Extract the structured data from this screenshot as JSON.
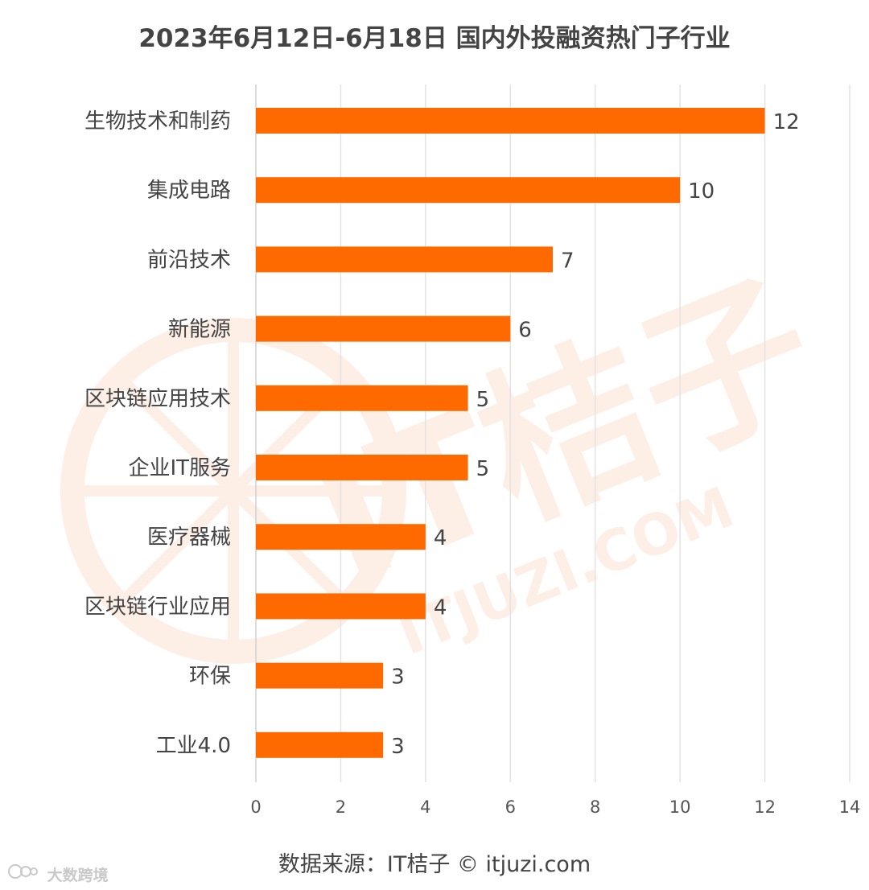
{
  "page": {
    "title": "2023年6月12日-6月18日 国内外投融资热门子行业",
    "source": "数据来源：IT桔子 © itjuzi.com",
    "watermark_text": "IT桔子",
    "watermark_url": "ITJUZI.COM",
    "brand_icon": "wechat-logo-icon",
    "brand_label": "大数跨境"
  },
  "colors": {
    "bar": "#ff6a00",
    "grid": "#e3e3e3",
    "text": "#444444",
    "watermark": "#fdeee6"
  },
  "chart_data": {
    "type": "bar",
    "orientation": "horizontal",
    "title": "2023年6月12日-6月18日 国内外投融资热门子行业",
    "categories": [
      "生物技术和制药",
      "集成电路",
      "前沿技术",
      "新能源",
      "区块链应用技术",
      "企业IT服务",
      "医疗器械",
      "区块链行业应用",
      "环保",
      "工业4.0"
    ],
    "values": [
      12,
      10,
      7,
      6,
      5,
      5,
      4,
      4,
      3,
      3
    ],
    "xlim": [
      0,
      14
    ],
    "xticks": [
      0,
      2,
      4,
      6,
      8,
      10,
      12,
      14
    ],
    "xlabel": "",
    "ylabel": "",
    "grid": "vertical",
    "legend": "none",
    "data_labels": true
  }
}
